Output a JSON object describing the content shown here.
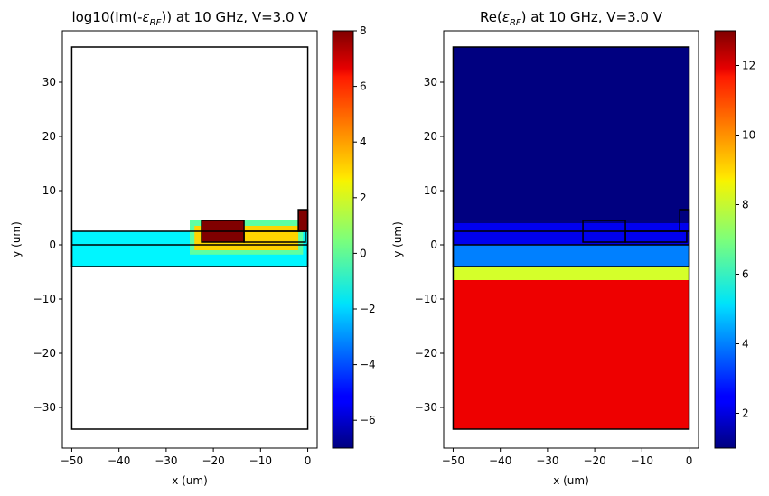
{
  "chart_data": [
    {
      "type": "heatmap",
      "title": "log10(Im(-ε_RF)) at 10 GHz, V=3.0 V",
      "title_parts": {
        "pre": "log10(Im(-",
        "var": "ε",
        "sub": "RF",
        "post": ")) at 10 GHz, V=3.0 V"
      },
      "xlabel": "x (um)",
      "ylabel": "y (um)",
      "xlim": [
        -52,
        2
      ],
      "ylim": [
        -37.5,
        39.5
      ],
      "xticks": [
        -50,
        -40,
        -30,
        -20,
        -10,
        0
      ],
      "yticks": [
        -30,
        -20,
        -10,
        0,
        10,
        20,
        30
      ],
      "grid": false,
      "colormap": "jet",
      "colorbar": {
        "min": -7,
        "max": 8,
        "ticks": [
          -6,
          -4,
          -2,
          0,
          2,
          4,
          6,
          8
        ]
      },
      "regions": [
        {
          "name": "slab",
          "x": [
            -50,
            0
          ],
          "y": [
            -4,
            2.5
          ],
          "value": -1.5
        },
        {
          "name": "doped-region",
          "x": [
            -25,
            -1
          ],
          "y": [
            -1.8,
            4.5
          ],
          "value": 0
        },
        {
          "name": "doped-core",
          "x": [
            -24,
            -2
          ],
          "y": [
            -1,
            3.5
          ],
          "value": 3
        },
        {
          "name": "electrode-left",
          "x": [
            -22.5,
            -13.5
          ],
          "y": [
            0.5,
            4.5
          ],
          "value": 8
        },
        {
          "name": "electrode-right",
          "x": [
            -2,
            0
          ],
          "y": [
            2.5,
            6.5
          ],
          "value": 8
        }
      ],
      "outlines": [
        {
          "x": [
            -50,
            0
          ],
          "y": [
            -34,
            36.5
          ]
        },
        {
          "x": [
            -50,
            0
          ],
          "y": [
            -4,
            2.5
          ]
        },
        {
          "x": [
            -50,
            0
          ],
          "y": [
            0,
            0
          ]
        },
        {
          "x": [
            -22.5,
            -13.5
          ],
          "y": [
            0.5,
            4.5
          ]
        },
        {
          "x": [
            -13.5,
            -0.5
          ],
          "y": [
            0.5,
            2.5
          ]
        },
        {
          "x": [
            -2,
            0
          ],
          "y": [
            2.5,
            6.5
          ]
        }
      ]
    },
    {
      "type": "heatmap",
      "title": "Re(ε_RF) at 10 GHz, V=3.0 V",
      "title_parts": {
        "pre": "Re(",
        "var": "ε",
        "sub": "RF",
        "post": ") at 10 GHz, V=3.0 V"
      },
      "xlabel": "x (um)",
      "ylabel": "y (um)",
      "xlim": [
        -52,
        2
      ],
      "ylim": [
        -37.5,
        39.5
      ],
      "xticks": [
        -50,
        -40,
        -30,
        -20,
        -10,
        0
      ],
      "yticks": [
        -30,
        -20,
        -10,
        0,
        10,
        20,
        30
      ],
      "grid": false,
      "colormap": "jet",
      "colorbar": {
        "min": 1,
        "max": 13,
        "ticks": [
          2,
          4,
          6,
          8,
          10,
          12
        ]
      },
      "regions": [
        {
          "name": "air",
          "x": [
            -50,
            0
          ],
          "y": [
            4,
            36.5
          ],
          "value": 1
        },
        {
          "name": "cladding",
          "x": [
            -50,
            0
          ],
          "y": [
            -4,
            4
          ],
          "value": 2.3
        },
        {
          "name": "slab",
          "x": [
            -50,
            0
          ],
          "y": [
            -4,
            0
          ],
          "value": 4
        },
        {
          "name": "transition",
          "x": [
            -50,
            0
          ],
          "y": [
            -7,
            -4
          ],
          "value": 8
        },
        {
          "name": "substrate",
          "x": [
            -50,
            0
          ],
          "y": [
            -34,
            -6.5
          ],
          "value": 11.7
        }
      ],
      "outlines": [
        {
          "x": [
            -50,
            0
          ],
          "y": [
            -34,
            36.5
          ]
        },
        {
          "x": [
            -50,
            0
          ],
          "y": [
            -4,
            2.5
          ]
        },
        {
          "x": [
            -50,
            0
          ],
          "y": [
            0,
            0
          ]
        },
        {
          "x": [
            -22.5,
            -13.5
          ],
          "y": [
            0.5,
            4.5
          ]
        },
        {
          "x": [
            -13.5,
            -0.5
          ],
          "y": [
            0.5,
            2.5
          ]
        },
        {
          "x": [
            -2,
            0
          ],
          "y": [
            2.5,
            6.5
          ]
        }
      ]
    }
  ]
}
